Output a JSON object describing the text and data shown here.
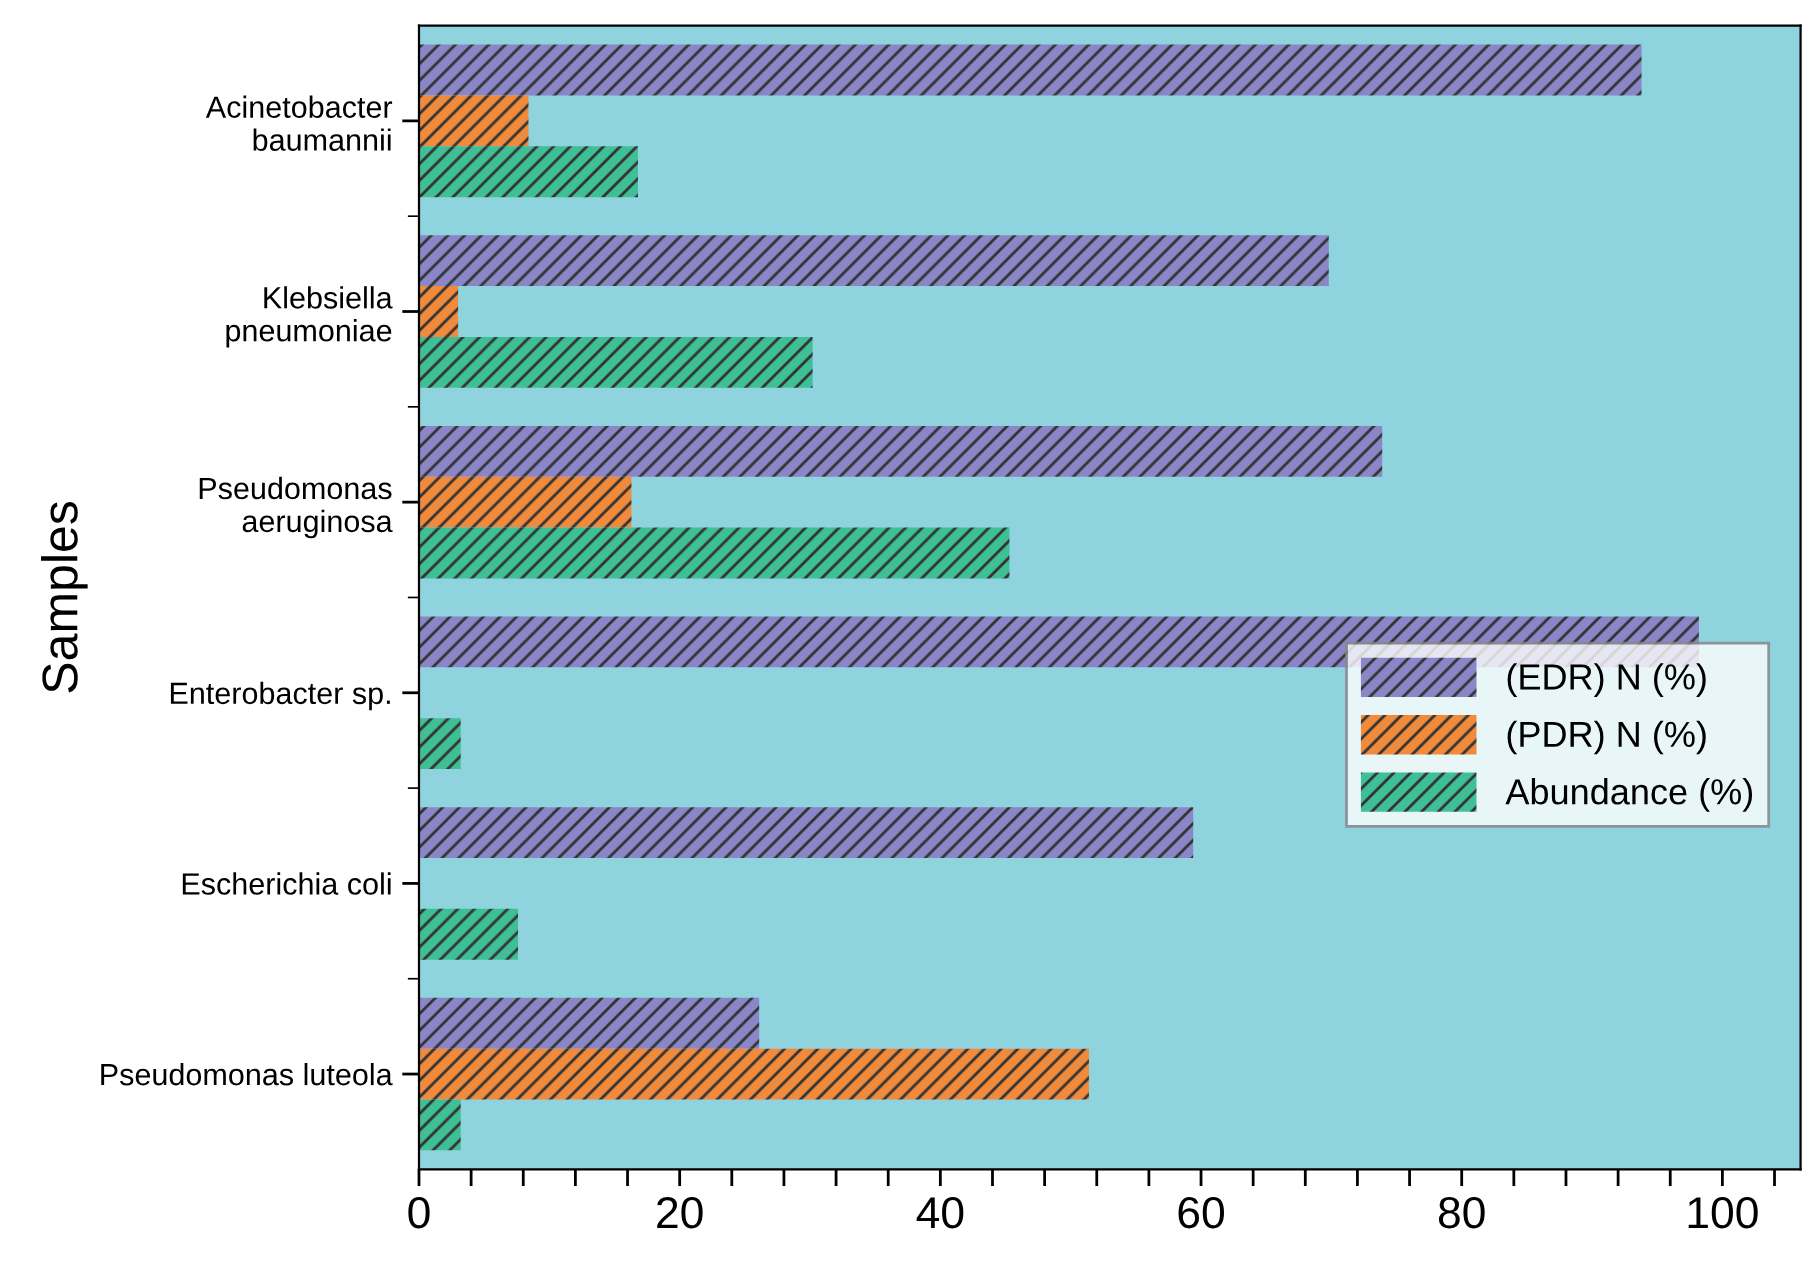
{
  "chart_data": {
    "type": "bar",
    "orientation": "horizontal",
    "ylabel": "Samples",
    "categories": [
      "Acinetobacter\nbaumannii",
      "Klebsiella\npneumoniae",
      "Pseudomonas\naeruginosa",
      "Enterobacter sp.",
      "Escherichia coli",
      "Pseudomonas luteola"
    ],
    "series": [
      {
        "name": "(EDR) N (%)",
        "color": "#8b86c8",
        "values": [
          93.8,
          69.8,
          73.9,
          98.2,
          59.4,
          26.1
        ]
      },
      {
        "name": "(PDR) N (%)",
        "color": "#f28a3c",
        "values": [
          8.4,
          3.0,
          16.3,
          null,
          null,
          51.4
        ]
      },
      {
        "name": "Abundance (%)",
        "color": "#3fbf95",
        "values": [
          16.8,
          30.2,
          45.3,
          3.2,
          7.6,
          3.2
        ]
      }
    ],
    "xlim": [
      0,
      106
    ],
    "xticks": [
      0,
      {
        "value": 4,
        "label": null
      },
      {
        "value": 8,
        "label": null
      },
      {
        "value": 12,
        "label": null
      },
      {
        "value": 16,
        "label": null
      },
      20,
      {
        "value": 24,
        "label": null
      },
      {
        "value": 28,
        "label": null
      },
      {
        "value": 32,
        "label": null
      },
      {
        "value": 36,
        "label": null
      },
      40,
      {
        "value": 44,
        "label": null
      },
      {
        "value": 48,
        "label": null
      },
      {
        "value": 52,
        "label": null
      },
      {
        "value": 56,
        "label": null
      },
      60,
      {
        "value": 64,
        "label": null
      },
      {
        "value": 68,
        "label": null
      },
      {
        "value": 72,
        "label": null
      },
      {
        "value": 76,
        "label": null
      },
      80,
      {
        "value": 84,
        "label": null
      },
      {
        "value": 88,
        "label": null
      },
      {
        "value": 92,
        "label": null
      },
      {
        "value": 96,
        "label": null
      },
      100,
      {
        "value": 104,
        "label": null
      }
    ],
    "legend": "right",
    "grid": false
  }
}
